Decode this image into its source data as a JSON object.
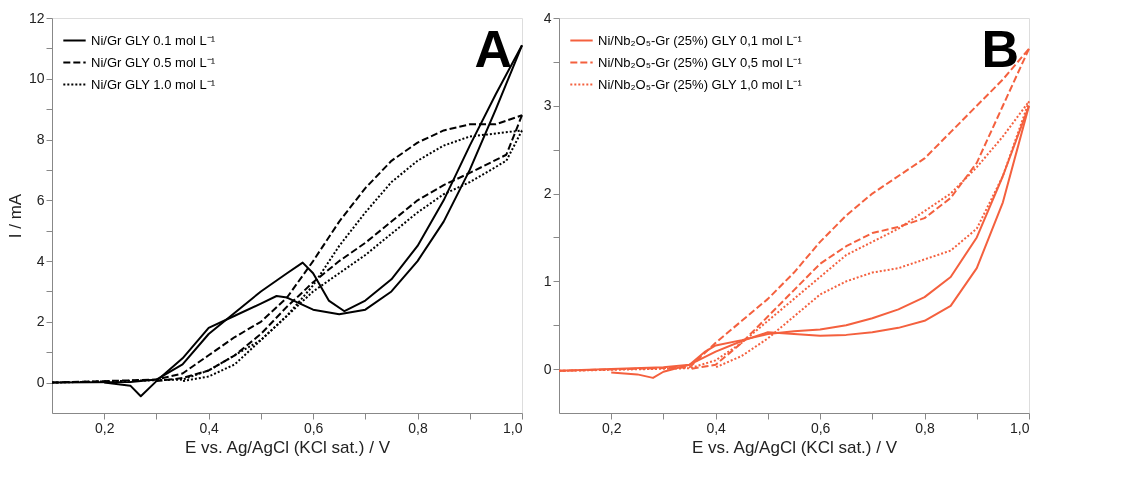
{
  "chart_data": [
    {
      "type": "line",
      "xlabel": "E vs. Ag/AgCl (KCl sat.) / V",
      "ylabel": "I / mA",
      "annotations": [
        "A"
      ],
      "legend": "top left",
      "grid": false,
      "marker": "none",
      "xlim": [
        0.1,
        1.0
      ],
      "xticks": [
        {
          "value": 0.2,
          "label": "0,2"
        },
        {
          "value": 0.3,
          "label": null
        },
        {
          "value": 0.4,
          "label": "0,4"
        },
        {
          "value": 0.5,
          "label": null
        },
        {
          "value": 0.6,
          "label": "0,6"
        },
        {
          "value": 0.7,
          "label": null
        },
        {
          "value": 0.8,
          "label": "0,8"
        },
        {
          "value": 0.9,
          "label": null
        },
        {
          "value": 1.0,
          "label": "1,0"
        }
      ],
      "ylim": [
        -1,
        12
      ],
      "yticks": [
        0,
        {
          "value": 1,
          "label": null
        },
        2,
        {
          "value": 3,
          "label": null
        },
        4,
        {
          "value": 5,
          "label": null
        },
        6,
        {
          "value": 7,
          "label": null
        },
        8,
        {
          "value": 9,
          "label": null
        },
        10,
        {
          "value": 11,
          "label": null
        },
        12
      ],
      "series": [
        {
          "name": "Ni/Gr GLY 0.1 mol L⁻¹",
          "color": "#000000",
          "line_style": "solid",
          "x": [
            0.1,
            0.25,
            0.3,
            0.35,
            0.4,
            0.45,
            0.5,
            0.55,
            0.58,
            0.6,
            0.63,
            0.66,
            0.7,
            0.75,
            0.8,
            0.85,
            0.9,
            0.95,
            1.0
          ],
          "values": [
            0,
            0.02,
            0.1,
            0.6,
            1.6,
            2.3,
            3.0,
            3.6,
            3.95,
            3.6,
            2.7,
            2.35,
            2.7,
            3.4,
            4.5,
            6.0,
            7.8,
            9.5,
            11.1
          ]
        },
        {
          "color": "#000000",
          "line_style": "solid",
          "x": [
            1.0,
            0.95,
            0.9,
            0.85,
            0.8,
            0.75,
            0.7,
            0.65,
            0.6,
            0.55,
            0.53,
            0.5,
            0.45,
            0.4,
            0.35,
            0.3,
            0.27,
            0.25,
            0.2
          ],
          "values": [
            11.1,
            9.0,
            7.0,
            5.3,
            4.0,
            3.0,
            2.4,
            2.25,
            2.4,
            2.8,
            2.85,
            2.6,
            2.2,
            1.8,
            0.8,
            0.05,
            -0.45,
            -0.1,
            0
          ]
        },
        {
          "name": "Ni/Gr GLY 0.5 mol L⁻¹",
          "color": "#000000",
          "line_style": "dashed",
          "x": [
            0.1,
            0.3,
            0.35,
            0.4,
            0.45,
            0.5,
            0.55,
            0.6,
            0.65,
            0.7,
            0.75,
            0.8,
            0.85,
            0.9,
            0.95,
            1.0
          ],
          "values": [
            0,
            0.1,
            0.3,
            0.9,
            1.5,
            2.0,
            2.8,
            4.0,
            5.3,
            6.4,
            7.3,
            7.9,
            8.3,
            8.5,
            8.5,
            8.8
          ]
        },
        {
          "color": "#000000",
          "line_style": "dashed",
          "x": [
            1.0,
            0.97,
            0.9,
            0.85,
            0.8,
            0.75,
            0.7,
            0.65,
            0.6,
            0.55,
            0.5,
            0.45,
            0.4,
            0.35,
            0.3
          ],
          "values": [
            8.8,
            7.5,
            6.9,
            6.5,
            6.0,
            5.3,
            4.6,
            4.0,
            3.3,
            2.5,
            1.6,
            0.9,
            0.4,
            0.15,
            0.05
          ]
        },
        {
          "name": "Ni/Gr GLY 1.0 mol L⁻¹",
          "color": "#000000",
          "line_style": "dotted",
          "x": [
            0.1,
            0.35,
            0.4,
            0.45,
            0.5,
            0.55,
            0.6,
            0.65,
            0.7,
            0.75,
            0.8,
            0.85,
            0.9,
            0.95,
            1.0
          ],
          "values": [
            0,
            0.1,
            0.4,
            0.9,
            1.4,
            2.2,
            3.2,
            4.5,
            5.6,
            6.6,
            7.3,
            7.8,
            8.1,
            8.2,
            8.3
          ]
        },
        {
          "color": "#000000",
          "line_style": "dotted",
          "x": [
            1.0,
            0.97,
            0.9,
            0.85,
            0.8,
            0.75,
            0.7,
            0.65,
            0.6,
            0.55,
            0.5,
            0.45,
            0.4,
            0.35
          ],
          "values": [
            8.3,
            7.3,
            6.6,
            6.2,
            5.6,
            4.9,
            4.2,
            3.6,
            3.0,
            2.2,
            1.4,
            0.6,
            0.2,
            0.05
          ]
        }
      ]
    },
    {
      "type": "line",
      "xlabel": "E vs. Ag/AgCl (KCl sat.) / V",
      "annotations": [
        "B"
      ],
      "legend": "top left",
      "grid": false,
      "marker": "none",
      "xlim": [
        0.1,
        1.0
      ],
      "xticks": [
        {
          "value": 0.2,
          "label": "0,2"
        },
        {
          "value": 0.3,
          "label": null
        },
        {
          "value": 0.4,
          "label": "0,4"
        },
        {
          "value": 0.5,
          "label": null
        },
        {
          "value": 0.6,
          "label": "0,6"
        },
        {
          "value": 0.7,
          "label": null
        },
        {
          "value": 0.8,
          "label": "0,8"
        },
        {
          "value": 0.9,
          "label": null
        },
        {
          "value": 1.0,
          "label": "1,0"
        }
      ],
      "ylim": [
        -0.5,
        4
      ],
      "yticks": [
        0,
        {
          "value": 0.5,
          "label": null
        },
        1,
        {
          "value": 1.5,
          "label": null
        },
        2,
        {
          "value": 2.5,
          "label": null
        },
        3,
        {
          "value": 3.5,
          "label": null
        },
        4
      ],
      "series": [
        {
          "name": "Ni/Nb₂O₅-Gr (25%) GLY 0,1 mol L⁻¹",
          "color": "#f4603e",
          "line_style": "solid",
          "x": [
            0.1,
            0.3,
            0.35,
            0.38,
            0.4,
            0.45,
            0.5,
            0.55,
            0.6,
            0.65,
            0.7,
            0.75,
            0.8,
            0.85,
            0.9,
            0.95,
            1.0
          ],
          "values": [
            -0.02,
            0.02,
            0.05,
            0.2,
            0.27,
            0.33,
            0.4,
            0.43,
            0.45,
            0.5,
            0.58,
            0.68,
            0.82,
            1.05,
            1.5,
            2.2,
            3.0
          ]
        },
        {
          "color": "#f4603e",
          "line_style": "solid",
          "x": [
            1.0,
            0.95,
            0.9,
            0.85,
            0.8,
            0.75,
            0.7,
            0.65,
            0.6,
            0.55,
            0.5,
            0.45,
            0.4,
            0.35,
            0.3,
            0.28,
            0.25,
            0.2
          ],
          "values": [
            3.0,
            1.9,
            1.15,
            0.72,
            0.55,
            0.47,
            0.42,
            0.39,
            0.38,
            0.4,
            0.42,
            0.32,
            0.2,
            0.05,
            -0.03,
            -0.1,
            -0.06,
            -0.04
          ]
        },
        {
          "name": "Ni/Nb₂O₅-Gr (25%) GLY 0,5 mol L⁻¹",
          "color": "#f4603e",
          "line_style": "dashed",
          "x": [
            0.1,
            0.35,
            0.4,
            0.45,
            0.5,
            0.55,
            0.6,
            0.65,
            0.7,
            0.75,
            0.8,
            0.85,
            0.9,
            0.95,
            1.0
          ],
          "values": [
            -0.02,
            0.02,
            0.3,
            0.55,
            0.8,
            1.1,
            1.45,
            1.75,
            2.0,
            2.2,
            2.4,
            2.7,
            3.0,
            3.3,
            3.65
          ]
        },
        {
          "color": "#f4603e",
          "line_style": "dashed",
          "x": [
            1.0,
            0.95,
            0.9,
            0.85,
            0.8,
            0.75,
            0.7,
            0.65,
            0.6,
            0.55,
            0.5,
            0.45,
            0.4,
            0.35
          ],
          "values": [
            3.65,
            3.0,
            2.35,
            1.95,
            1.72,
            1.62,
            1.55,
            1.4,
            1.2,
            0.9,
            0.6,
            0.3,
            0.05,
            0.0
          ]
        },
        {
          "name": "Ni/Nb₂O₅-Gr (25%) GLY 1,0 mol L⁻¹",
          "color": "#f4603e",
          "line_style": "dotted",
          "x": [
            0.1,
            0.35,
            0.4,
            0.45,
            0.5,
            0.55,
            0.6,
            0.65,
            0.7,
            0.75,
            0.8,
            0.85,
            0.9,
            0.95,
            1.0
          ],
          "values": [
            -0.02,
            0.01,
            0.1,
            0.3,
            0.55,
            0.8,
            1.05,
            1.3,
            1.45,
            1.6,
            1.8,
            2.0,
            2.3,
            2.65,
            3.05
          ]
        },
        {
          "color": "#f4603e",
          "line_style": "dotted",
          "x": [
            1.0,
            0.95,
            0.9,
            0.85,
            0.8,
            0.75,
            0.7,
            0.65,
            0.6,
            0.55,
            0.5,
            0.45,
            0.4
          ],
          "values": [
            3.05,
            2.2,
            1.6,
            1.35,
            1.25,
            1.15,
            1.1,
            1.0,
            0.85,
            0.6,
            0.35,
            0.15,
            0.02
          ]
        }
      ]
    }
  ]
}
